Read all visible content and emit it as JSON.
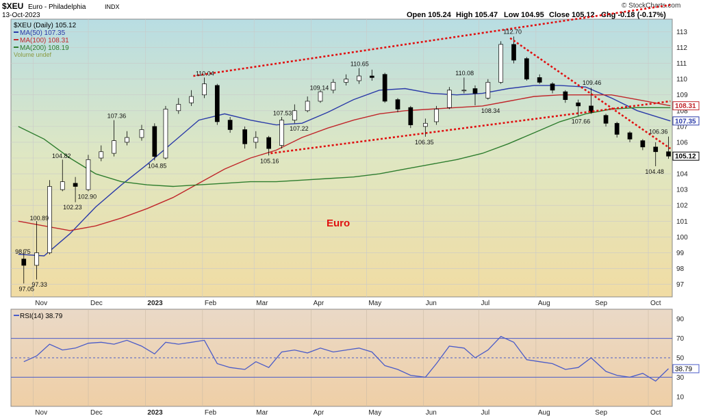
{
  "header": {
    "symbol": "$XEU",
    "name": "Euro - Philadelphia",
    "exchange": "INDX",
    "date": "13-Oct-2023",
    "open_label": "Open 105.24",
    "high_label": "High 105.47",
    "low_label": "Low 104.95",
    "close_label": "Close 105.12",
    "chg_label": "Chg -0.18 (-0.17%)",
    "watermark": "© StockCharts.com"
  },
  "legend": {
    "main": "$XEU (Daily) 105.12",
    "ma50": "MA(50) 107.35",
    "ma100": "MA(100) 108.31",
    "ma200": "MA(200) 108.19",
    "volume": "Volume undef"
  },
  "annotation_text": "Euro",
  "rsi_label": "RSI(14) 38.79",
  "rsi_value_tag": "38.79",
  "colors": {
    "ma50": "#2a3aa8",
    "ma100": "#c0262a",
    "ma200": "#2e7d2e",
    "trendline": "#e01010",
    "rsi": "#4a5bc8",
    "annotation": "#e01010"
  },
  "chart_data": [
    {
      "type": "candlestick",
      "title": "$XEU Euro - Philadelphia INDX (Daily)",
      "x_tick_labels": [
        "Nov",
        "Dec",
        "2023",
        "Feb",
        "Mar",
        "Apr",
        "May",
        "Jun",
        "Jul",
        "Aug",
        "Sep",
        "Oct"
      ],
      "y_tick_labels": [
        97,
        98,
        99,
        100,
        101,
        102,
        103,
        104,
        105,
        106,
        107,
        108,
        109,
        110,
        111,
        112,
        113
      ],
      "ylim": [
        96.2,
        113.8
      ],
      "price_labels": [
        {
          "date": "2022-10-28",
          "value": 97.05,
          "text": "97.05"
        },
        {
          "date": "2022-10-26",
          "value": 98.75,
          "text": "98.75"
        },
        {
          "date": "2022-11-03",
          "value": 100.89,
          "text": "100.89"
        },
        {
          "date": "2022-11-04",
          "value": 97.33,
          "text": "97.33"
        },
        {
          "date": "2022-11-15",
          "value": 104.82,
          "text": "104.82"
        },
        {
          "date": "2022-11-21",
          "value": 102.23,
          "text": "102.23"
        },
        {
          "date": "2022-11-29",
          "value": 102.9,
          "text": "102.90"
        },
        {
          "date": "2022-12-15",
          "value": 107.36,
          "text": "107.36"
        },
        {
          "date": "2023-01-06",
          "value": 104.85,
          "text": "104.85"
        },
        {
          "date": "2023-02-01",
          "value": 110.04,
          "text": "110.04"
        },
        {
          "date": "2023-03-08",
          "value": 105.16,
          "text": "105.16"
        },
        {
          "date": "2023-03-15",
          "value": 107.53,
          "text": "107.53"
        },
        {
          "date": "2023-03-24",
          "value": 107.22,
          "text": "107.22"
        },
        {
          "date": "2023-04-04",
          "value": 109.14,
          "text": "109.14"
        },
        {
          "date": "2023-04-26",
          "value": 110.65,
          "text": "110.65"
        },
        {
          "date": "2023-05-31",
          "value": 106.35,
          "text": "106.35"
        },
        {
          "date": "2023-06-22",
          "value": 110.08,
          "text": "110.08"
        },
        {
          "date": "2023-07-06",
          "value": 108.34,
          "text": "108.34"
        },
        {
          "date": "2023-07-18",
          "value": 112.7,
          "text": "112.70"
        },
        {
          "date": "2023-08-24",
          "value": 107.66,
          "text": "107.66"
        },
        {
          "date": "2023-08-30",
          "value": 109.46,
          "text": "109.46"
        },
        {
          "date": "2023-10-03",
          "value": 104.48,
          "text": "104.48"
        },
        {
          "date": "2023-10-11",
          "value": 106.36,
          "text": "106.36"
        }
      ],
      "series": [
        {
          "name": "$XEU (Daily)",
          "last": 105.12,
          "x": [
            "2022-10-24",
            "2022-10-31",
            "2022-11-07",
            "2022-11-14",
            "2022-11-21",
            "2022-11-28",
            "2022-12-05",
            "2022-12-12",
            "2022-12-19",
            "2022-12-27",
            "2023-01-03",
            "2023-01-09",
            "2023-01-16",
            "2023-01-23",
            "2023-01-30",
            "2023-02-06",
            "2023-02-13",
            "2023-02-21",
            "2023-02-27",
            "2023-03-06",
            "2023-03-13",
            "2023-03-20",
            "2023-03-27",
            "2023-04-03",
            "2023-04-10",
            "2023-04-17",
            "2023-04-24",
            "2023-05-01",
            "2023-05-08",
            "2023-05-15",
            "2023-05-22",
            "2023-05-30",
            "2023-06-05",
            "2023-06-12",
            "2023-06-20",
            "2023-06-26",
            "2023-07-03",
            "2023-07-10",
            "2023-07-17",
            "2023-07-24",
            "2023-07-31",
            "2023-08-07",
            "2023-08-14",
            "2023-08-21",
            "2023-08-28",
            "2023-09-05",
            "2023-09-11",
            "2023-09-18",
            "2023-09-25",
            "2023-10-02",
            "2023-10-09"
          ],
          "open": [
            98.6,
            98.2,
            99.0,
            103.0,
            103.4,
            103.0,
            105.0,
            105.3,
            106.0,
            106.3,
            107.0,
            105.0,
            108.0,
            108.5,
            109.0,
            109.6,
            107.4,
            106.8,
            106.0,
            106.3,
            105.8,
            107.4,
            108.0,
            108.6,
            109.3,
            109.8,
            109.9,
            110.2,
            110.3,
            108.7,
            108.2,
            107.0,
            107.3,
            108.2,
            109.3,
            109.4,
            108.8,
            109.8,
            112.2,
            111.3,
            110.1,
            109.7,
            109.2,
            108.5,
            108.3,
            107.7,
            107.2,
            106.6,
            106.1,
            105.7,
            105.4
          ],
          "close": [
            98.2,
            99.0,
            103.2,
            103.5,
            103.2,
            104.9,
            105.4,
            106.1,
            106.3,
            106.8,
            105.1,
            108.1,
            108.4,
            108.9,
            109.7,
            107.3,
            106.8,
            105.9,
            106.3,
            105.6,
            107.4,
            108.0,
            108.6,
            109.2,
            109.8,
            110.0,
            110.2,
            110.1,
            108.6,
            108.1,
            107.1,
            107.2,
            108.1,
            109.3,
            109.3,
            109.1,
            109.8,
            112.2,
            111.2,
            110.0,
            109.8,
            109.3,
            108.7,
            108.3,
            107.9,
            107.2,
            106.5,
            106.2,
            105.7,
            105.4,
            105.12
          ],
          "high": [
            99.2,
            101.0,
            103.6,
            104.9,
            103.8,
            105.2,
            105.8,
            107.4,
            106.7,
            107.1,
            107.2,
            108.3,
            108.8,
            109.3,
            110.1,
            109.7,
            107.6,
            107.0,
            106.7,
            106.4,
            107.6,
            108.4,
            108.9,
            109.3,
            110.0,
            110.3,
            110.7,
            110.6,
            110.4,
            108.8,
            108.3,
            107.5,
            108.3,
            109.5,
            110.1,
            109.6,
            110.0,
            112.4,
            112.7,
            111.4,
            110.3,
            109.8,
            109.3,
            108.7,
            109.46,
            107.8,
            107.3,
            106.7,
            106.2,
            106.0,
            106.36
          ],
          "low": [
            97.05,
            97.3,
            98.9,
            102.9,
            102.2,
            102.9,
            104.8,
            105.1,
            105.8,
            106.1,
            104.85,
            104.9,
            107.8,
            108.3,
            108.8,
            107.1,
            106.6,
            105.6,
            105.6,
            105.16,
            105.6,
            107.2,
            107.9,
            108.5,
            109.1,
            109.6,
            109.7,
            109.9,
            108.5,
            107.9,
            106.9,
            106.35,
            107.1,
            108.1,
            109.1,
            108.34,
            108.7,
            109.7,
            111.0,
            109.9,
            109.7,
            109.1,
            108.5,
            107.66,
            107.8,
            107.0,
            106.3,
            106.0,
            105.5,
            104.48,
            104.95
          ]
        },
        {
          "name": "MA(50)",
          "last": 107.35,
          "x": [
            "2022-10-24",
            "2022-11-07",
            "2022-11-21",
            "2022-12-05",
            "2022-12-19",
            "2023-01-02",
            "2023-01-16",
            "2023-01-30",
            "2023-02-13",
            "2023-02-27",
            "2023-03-13",
            "2023-03-27",
            "2023-04-10",
            "2023-04-24",
            "2023-05-08",
            "2023-05-22",
            "2023-06-05",
            "2023-06-19",
            "2023-07-03",
            "2023-07-17",
            "2023-07-31",
            "2023-08-14",
            "2023-08-28",
            "2023-09-11",
            "2023-09-25",
            "2023-10-13"
          ],
          "values": [
            98.9,
            98.8,
            100.2,
            101.9,
            103.3,
            104.6,
            106.0,
            107.4,
            107.8,
            107.4,
            107.1,
            107.2,
            107.9,
            108.7,
            109.3,
            109.4,
            109.1,
            109.0,
            109.1,
            109.4,
            109.6,
            109.6,
            109.5,
            108.8,
            108.0,
            107.35
          ]
        },
        {
          "name": "MA(100)",
          "last": 108.31,
          "x": [
            "2022-10-24",
            "2022-11-07",
            "2022-11-21",
            "2022-12-05",
            "2022-12-19",
            "2023-01-02",
            "2023-01-16",
            "2023-01-30",
            "2023-02-13",
            "2023-02-27",
            "2023-03-13",
            "2023-03-27",
            "2023-04-10",
            "2023-04-24",
            "2023-05-08",
            "2023-05-22",
            "2023-06-05",
            "2023-06-19",
            "2023-07-03",
            "2023-07-17",
            "2023-07-31",
            "2023-08-14",
            "2023-08-28",
            "2023-09-11",
            "2023-09-25",
            "2023-10-13"
          ],
          "values": [
            101.0,
            100.7,
            100.4,
            100.7,
            101.2,
            101.8,
            102.5,
            103.4,
            104.3,
            105.0,
            105.5,
            106.3,
            106.9,
            107.4,
            107.8,
            108.0,
            108.1,
            108.2,
            108.3,
            108.6,
            108.9,
            109.0,
            109.0,
            109.0,
            108.7,
            108.31
          ]
        },
        {
          "name": "MA(200)",
          "last": 108.19,
          "x": [
            "2022-10-24",
            "2022-11-07",
            "2022-11-21",
            "2022-12-05",
            "2022-12-19",
            "2023-01-02",
            "2023-01-16",
            "2023-01-30",
            "2023-02-13",
            "2023-02-27",
            "2023-03-13",
            "2023-03-27",
            "2023-04-10",
            "2023-04-24",
            "2023-05-08",
            "2023-05-22",
            "2023-06-05",
            "2023-06-19",
            "2023-07-03",
            "2023-07-17",
            "2023-07-31",
            "2023-08-14",
            "2023-08-28",
            "2023-09-11",
            "2023-09-25",
            "2023-10-13"
          ],
          "values": [
            107.0,
            106.2,
            105.0,
            104.0,
            103.5,
            103.3,
            103.2,
            103.3,
            103.4,
            103.5,
            103.5,
            103.6,
            103.7,
            103.8,
            104.0,
            104.3,
            104.6,
            104.9,
            105.3,
            105.9,
            106.6,
            107.3,
            107.8,
            108.1,
            108.2,
            108.19
          ]
        }
      ],
      "trendlines": [
        {
          "x": [
            "2023-01-27",
            "2023-10-13"
          ],
          "values": [
            110.2,
            114.7
          ]
        },
        {
          "x": [
            "2023-03-10",
            "2023-10-13"
          ],
          "values": [
            105.3,
            108.6
          ]
        },
        {
          "x": [
            "2023-07-18",
            "2023-10-13"
          ],
          "values": [
            112.6,
            105.6
          ]
        }
      ]
    },
    {
      "type": "line",
      "title": "RSI(14) 38.79",
      "y_tick_labels": [
        10,
        30,
        50,
        70,
        90
      ],
      "ylim": [
        0,
        100
      ],
      "reference_lines": [
        30,
        50,
        70
      ],
      "series": [
        {
          "name": "RSI(14)",
          "last": 38.79,
          "x": [
            "2022-10-24",
            "2022-10-31",
            "2022-11-07",
            "2022-11-14",
            "2022-11-21",
            "2022-11-28",
            "2022-12-05",
            "2022-12-12",
            "2022-12-19",
            "2022-12-27",
            "2023-01-03",
            "2023-01-09",
            "2023-01-16",
            "2023-01-23",
            "2023-01-30",
            "2023-02-06",
            "2023-02-13",
            "2023-02-21",
            "2023-02-27",
            "2023-03-06",
            "2023-03-13",
            "2023-03-20",
            "2023-03-27",
            "2023-04-03",
            "2023-04-10",
            "2023-04-17",
            "2023-04-24",
            "2023-05-01",
            "2023-05-08",
            "2023-05-15",
            "2023-05-22",
            "2023-05-30",
            "2023-06-05",
            "2023-06-12",
            "2023-06-20",
            "2023-06-26",
            "2023-07-03",
            "2023-07-10",
            "2023-07-17",
            "2023-07-24",
            "2023-07-31",
            "2023-08-07",
            "2023-08-14",
            "2023-08-21",
            "2023-08-28",
            "2023-09-05",
            "2023-09-11",
            "2023-09-18",
            "2023-09-25",
            "2023-10-02",
            "2023-10-09"
          ],
          "values": [
            46,
            52,
            64,
            58,
            60,
            65,
            66,
            64,
            68,
            62,
            54,
            66,
            64,
            66,
            68,
            44,
            40,
            38,
            46,
            40,
            56,
            58,
            55,
            60,
            56,
            58,
            60,
            56,
            42,
            38,
            32,
            30,
            44,
            62,
            60,
            50,
            58,
            72,
            66,
            48,
            46,
            44,
            38,
            40,
            50,
            36,
            32,
            30,
            34,
            26,
            38.79
          ]
        }
      ]
    }
  ]
}
